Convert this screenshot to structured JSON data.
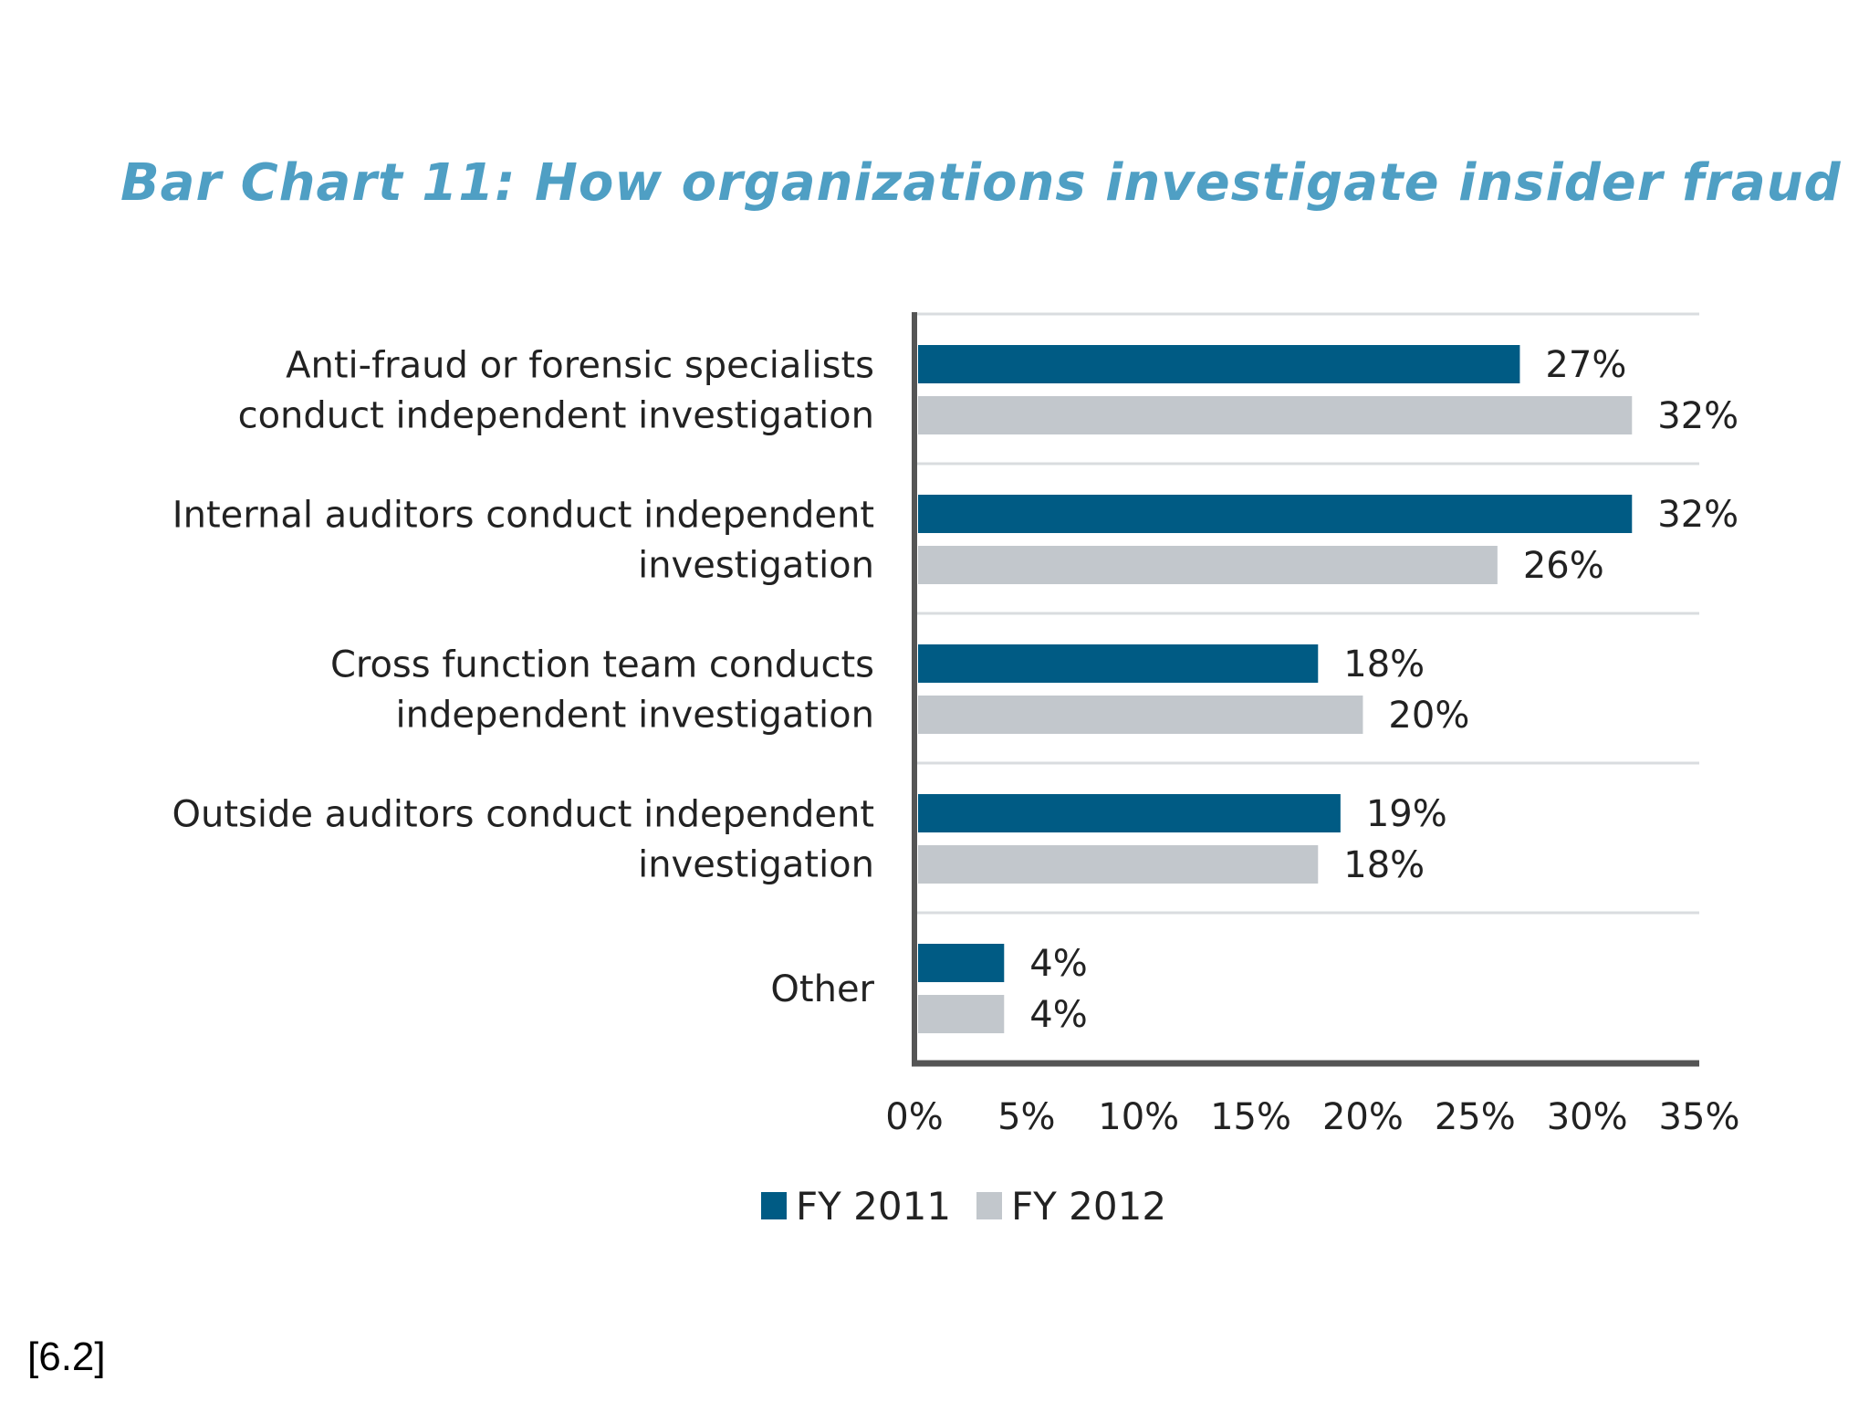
{
  "chart_data": {
    "type": "bar",
    "orientation": "horizontal",
    "title": "Bar Chart 11: How organizations investigate insider fraud",
    "categories": [
      [
        "Anti-fraud or forensic specialists",
        "conduct independent investigation"
      ],
      [
        "Internal auditors conduct independent",
        "investigation"
      ],
      [
        "Cross function team conducts",
        "independent investigation"
      ],
      [
        "Outside auditors conduct independent",
        "investigation"
      ],
      [
        "Other"
      ]
    ],
    "series": [
      {
        "name": "FY 2011",
        "color": "#005b84",
        "values": [
          27,
          32,
          18,
          19,
          4
        ]
      },
      {
        "name": "FY 2012",
        "color": "#c2c7cc",
        "values": [
          32,
          26,
          20,
          18,
          4
        ]
      }
    ],
    "xlim": [
      0,
      35
    ],
    "xticks": [
      "0%",
      "5%",
      "10%",
      "15%",
      "20%",
      "25%",
      "30%",
      "35%"
    ],
    "value_suffix": "%",
    "grid": "horizontal separators between categories",
    "legend_position": "bottom"
  },
  "footnote": "[6.2]"
}
